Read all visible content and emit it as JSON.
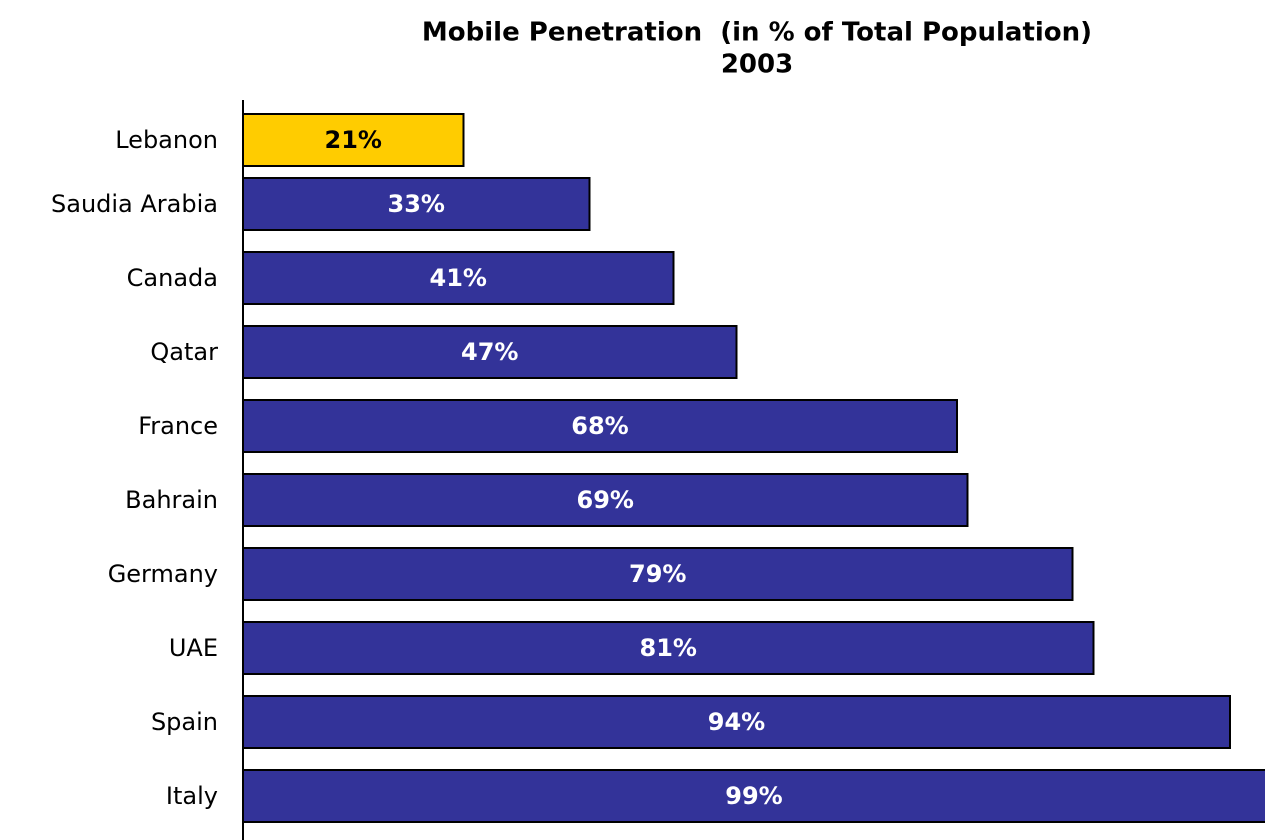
{
  "chart_data": {
    "type": "bar",
    "orientation": "horizontal",
    "title": "Mobile Penetration  (in % of Total Population)",
    "subtitle": "2003",
    "categories": [
      "Lebanon",
      "Saudia Arabia",
      "Canada",
      "Qatar",
      "France",
      "Bahrain",
      "Germany",
      "UAE",
      "Spain",
      "Italy"
    ],
    "values": [
      21,
      33,
      41,
      47,
      68,
      69,
      79,
      81,
      94,
      99
    ],
    "value_labels": [
      "21%",
      "33%",
      "41%",
      "47%",
      "68%",
      "69%",
      "79%",
      "81%",
      "94%",
      "99%"
    ],
    "colors": [
      "#ffcc00",
      "#333399",
      "#333399",
      "#333399",
      "#333399",
      "#333399",
      "#333399",
      "#333399",
      "#333399",
      "#333399"
    ],
    "xlim": [
      0,
      100
    ]
  }
}
